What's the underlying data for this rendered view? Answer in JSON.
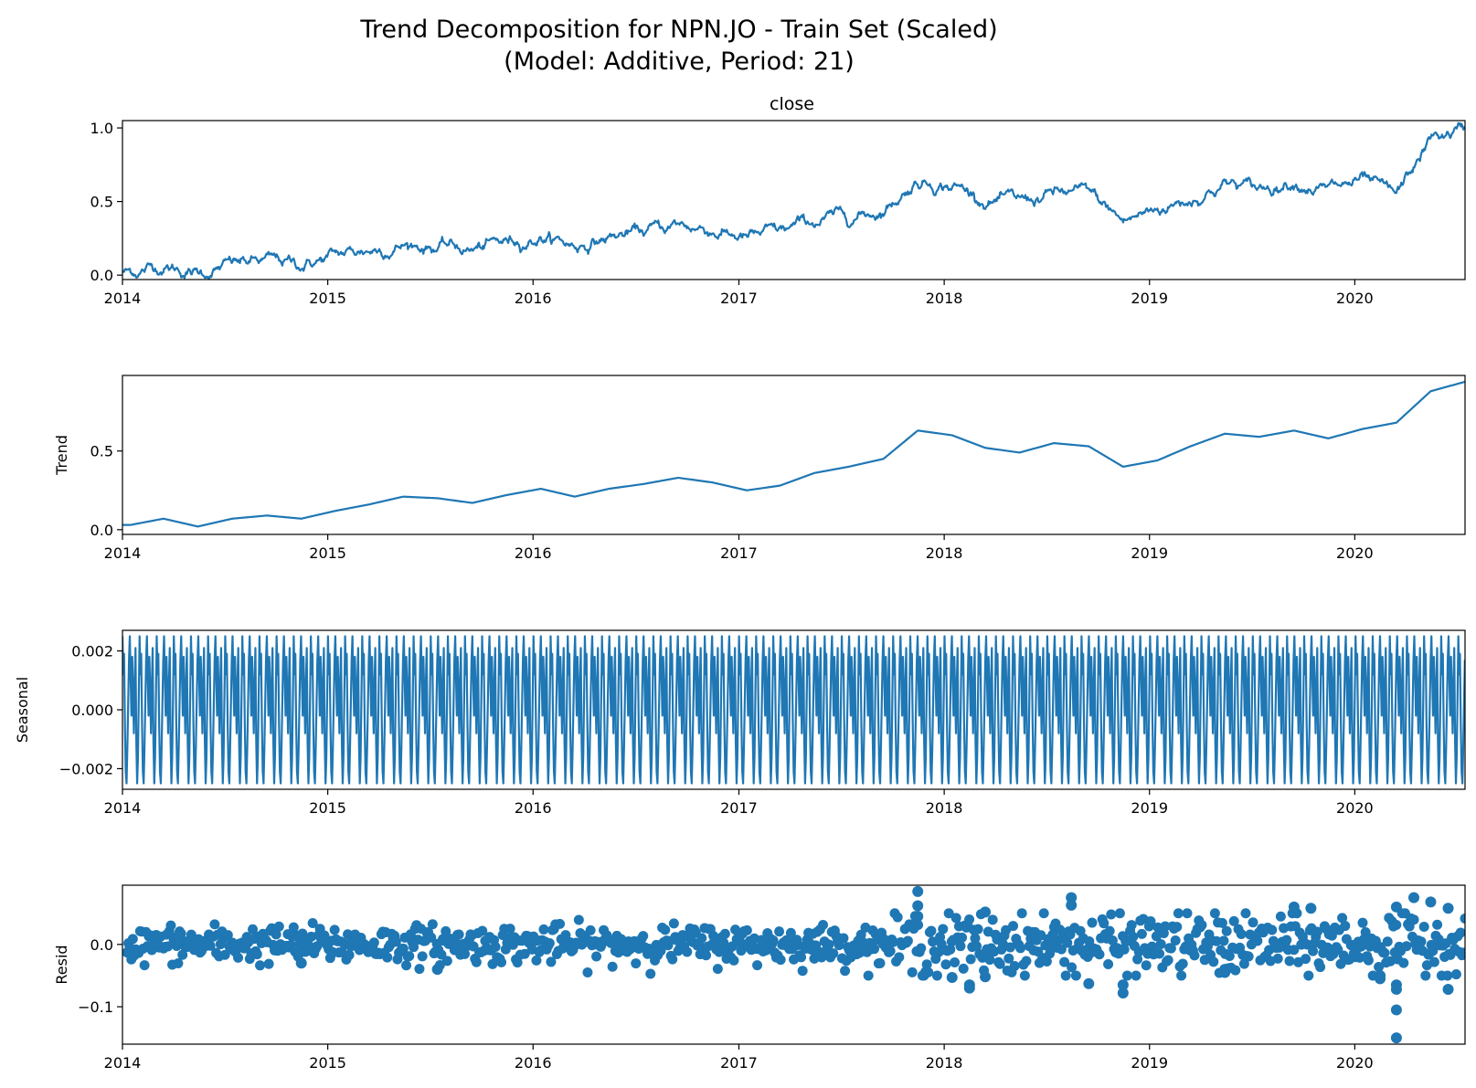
{
  "figure": {
    "title_line1": "Trend Decomposition for NPN.JO - Train Set (Scaled)",
    "title_line2": "(Model: Additive, Period: 21)",
    "line_color": "#1f77b4"
  },
  "chart_data": [
    {
      "type": "line",
      "title": "close",
      "ylabel": "",
      "xlim": [
        "2014-01-01",
        "2020-07-15"
      ],
      "ylim": [
        -0.03,
        1.05
      ],
      "x_ticks": [
        "2014",
        "2015",
        "2016",
        "2017",
        "2018",
        "2019",
        "2020"
      ],
      "y_ticks": [
        "0.0",
        "0.5",
        "1.0"
      ],
      "x": [
        "2014-01",
        "2014-03",
        "2014-05",
        "2014-07",
        "2014-09",
        "2014-11",
        "2015-01",
        "2015-03",
        "2015-05",
        "2015-07",
        "2015-09",
        "2015-11",
        "2016-01",
        "2016-03",
        "2016-05",
        "2016-07",
        "2016-09",
        "2016-11",
        "2017-01",
        "2017-03",
        "2017-05",
        "2017-07",
        "2017-09",
        "2017-11",
        "2018-01",
        "2018-03",
        "2018-05",
        "2018-07",
        "2018-09",
        "2018-11",
        "2019-01",
        "2019-03",
        "2019-05",
        "2019-07",
        "2019-09",
        "2019-11",
        "2020-01",
        "2020-03",
        "2020-05",
        "2020-07"
      ],
      "values": [
        0.02,
        0.07,
        0.01,
        0.07,
        0.09,
        0.07,
        0.13,
        0.17,
        0.21,
        0.2,
        0.17,
        0.22,
        0.27,
        0.2,
        0.26,
        0.29,
        0.34,
        0.31,
        0.25,
        0.28,
        0.36,
        0.4,
        0.45,
        0.65,
        0.62,
        0.52,
        0.49,
        0.55,
        0.55,
        0.36,
        0.45,
        0.52,
        0.63,
        0.58,
        0.66,
        0.58,
        0.63,
        0.52,
        0.92,
        0.99
      ]
    },
    {
      "type": "line",
      "title": "",
      "ylabel": "Trend",
      "xlim": [
        "2014-01-01",
        "2020-07-15"
      ],
      "ylim": [
        -0.03,
        0.98
      ],
      "x_ticks": [
        "2014",
        "2015",
        "2016",
        "2017",
        "2018",
        "2019",
        "2020"
      ],
      "y_ticks": [
        "0.0",
        "0.5"
      ],
      "x": [
        "2014-01",
        "2014-03",
        "2014-05",
        "2014-07",
        "2014-09",
        "2014-11",
        "2015-01",
        "2015-03",
        "2015-05",
        "2015-07",
        "2015-09",
        "2015-11",
        "2016-01",
        "2016-03",
        "2016-05",
        "2016-07",
        "2016-09",
        "2016-11",
        "2017-01",
        "2017-03",
        "2017-05",
        "2017-07",
        "2017-09",
        "2017-11",
        "2018-01",
        "2018-03",
        "2018-05",
        "2018-07",
        "2018-09",
        "2018-11",
        "2019-01",
        "2019-03",
        "2019-05",
        "2019-07",
        "2019-09",
        "2019-11",
        "2020-01",
        "2020-03",
        "2020-05",
        "2020-07"
      ],
      "values": [
        0.03,
        0.07,
        0.02,
        0.07,
        0.09,
        0.07,
        0.12,
        0.16,
        0.21,
        0.2,
        0.17,
        0.22,
        0.26,
        0.21,
        0.26,
        0.29,
        0.33,
        0.3,
        0.25,
        0.28,
        0.36,
        0.4,
        0.45,
        0.63,
        0.6,
        0.52,
        0.49,
        0.55,
        0.53,
        0.4,
        0.44,
        0.53,
        0.61,
        0.59,
        0.63,
        0.58,
        0.64,
        0.68,
        0.88,
        0.94
      ]
    },
    {
      "type": "line",
      "title": "",
      "ylabel": "Seasonal",
      "xlim": [
        "2014-01-01",
        "2020-07-15"
      ],
      "ylim": [
        -0.0027,
        0.0027
      ],
      "x_ticks": [
        "2014",
        "2015",
        "2016",
        "2017",
        "2018",
        "2019",
        "2020"
      ],
      "y_ticks": [
        "0.002",
        "0.000",
        "−0.002"
      ],
      "period_trading_days": 21,
      "cycle_values": [
        0.0025,
        0.0012,
        0.0019,
        -0.0005,
        -0.0021,
        -0.0025,
        -0.0013,
        0.0002,
        0.0017,
        0.0025,
        0.0011,
        -0.0002,
        0.0018,
        0.0006,
        -0.0008,
        0.0009,
        0.0021,
        -0.0011,
        -0.0025,
        -0.0016,
        0.0004
      ]
    },
    {
      "type": "scatter",
      "title": "",
      "ylabel": "Resid",
      "xlim": [
        "2014-01-01",
        "2020-07-15"
      ],
      "ylim": [
        -0.16,
        0.095
      ],
      "x_ticks": [
        "2014",
        "2015",
        "2016",
        "2017",
        "2018",
        "2019",
        "2020"
      ],
      "y_ticks": [
        "0.0",
        "−0.1"
      ],
      "baseline_spread": 0.015,
      "x": [
        "2014-11",
        "2015-07",
        "2017-11",
        "2017-11",
        "2017-11",
        "2018-01",
        "2018-02",
        "2018-02",
        "2018-03",
        "2018-03",
        "2018-08",
        "2018-08",
        "2018-09",
        "2018-11",
        "2018-11",
        "2019-05",
        "2019-05",
        "2019-09",
        "2019-10",
        "2020-02",
        "2020-02",
        "2020-03",
        "2020-03",
        "2020-03",
        "2020-03",
        "2020-03",
        "2020-04",
        "2020-05",
        "2020-06",
        "2020-06"
      ],
      "values": [
        -0.03,
        -0.04,
        0.085,
        0.062,
        0.045,
        -0.053,
        -0.065,
        -0.07,
        0.052,
        -0.052,
        0.075,
        0.063,
        -0.063,
        -0.065,
        -0.078,
        -0.04,
        -0.045,
        0.06,
        0.058,
        -0.05,
        -0.055,
        0.06,
        -0.105,
        -0.15,
        -0.072,
        -0.065,
        0.075,
        0.068,
        -0.072,
        0.058
      ]
    }
  ]
}
